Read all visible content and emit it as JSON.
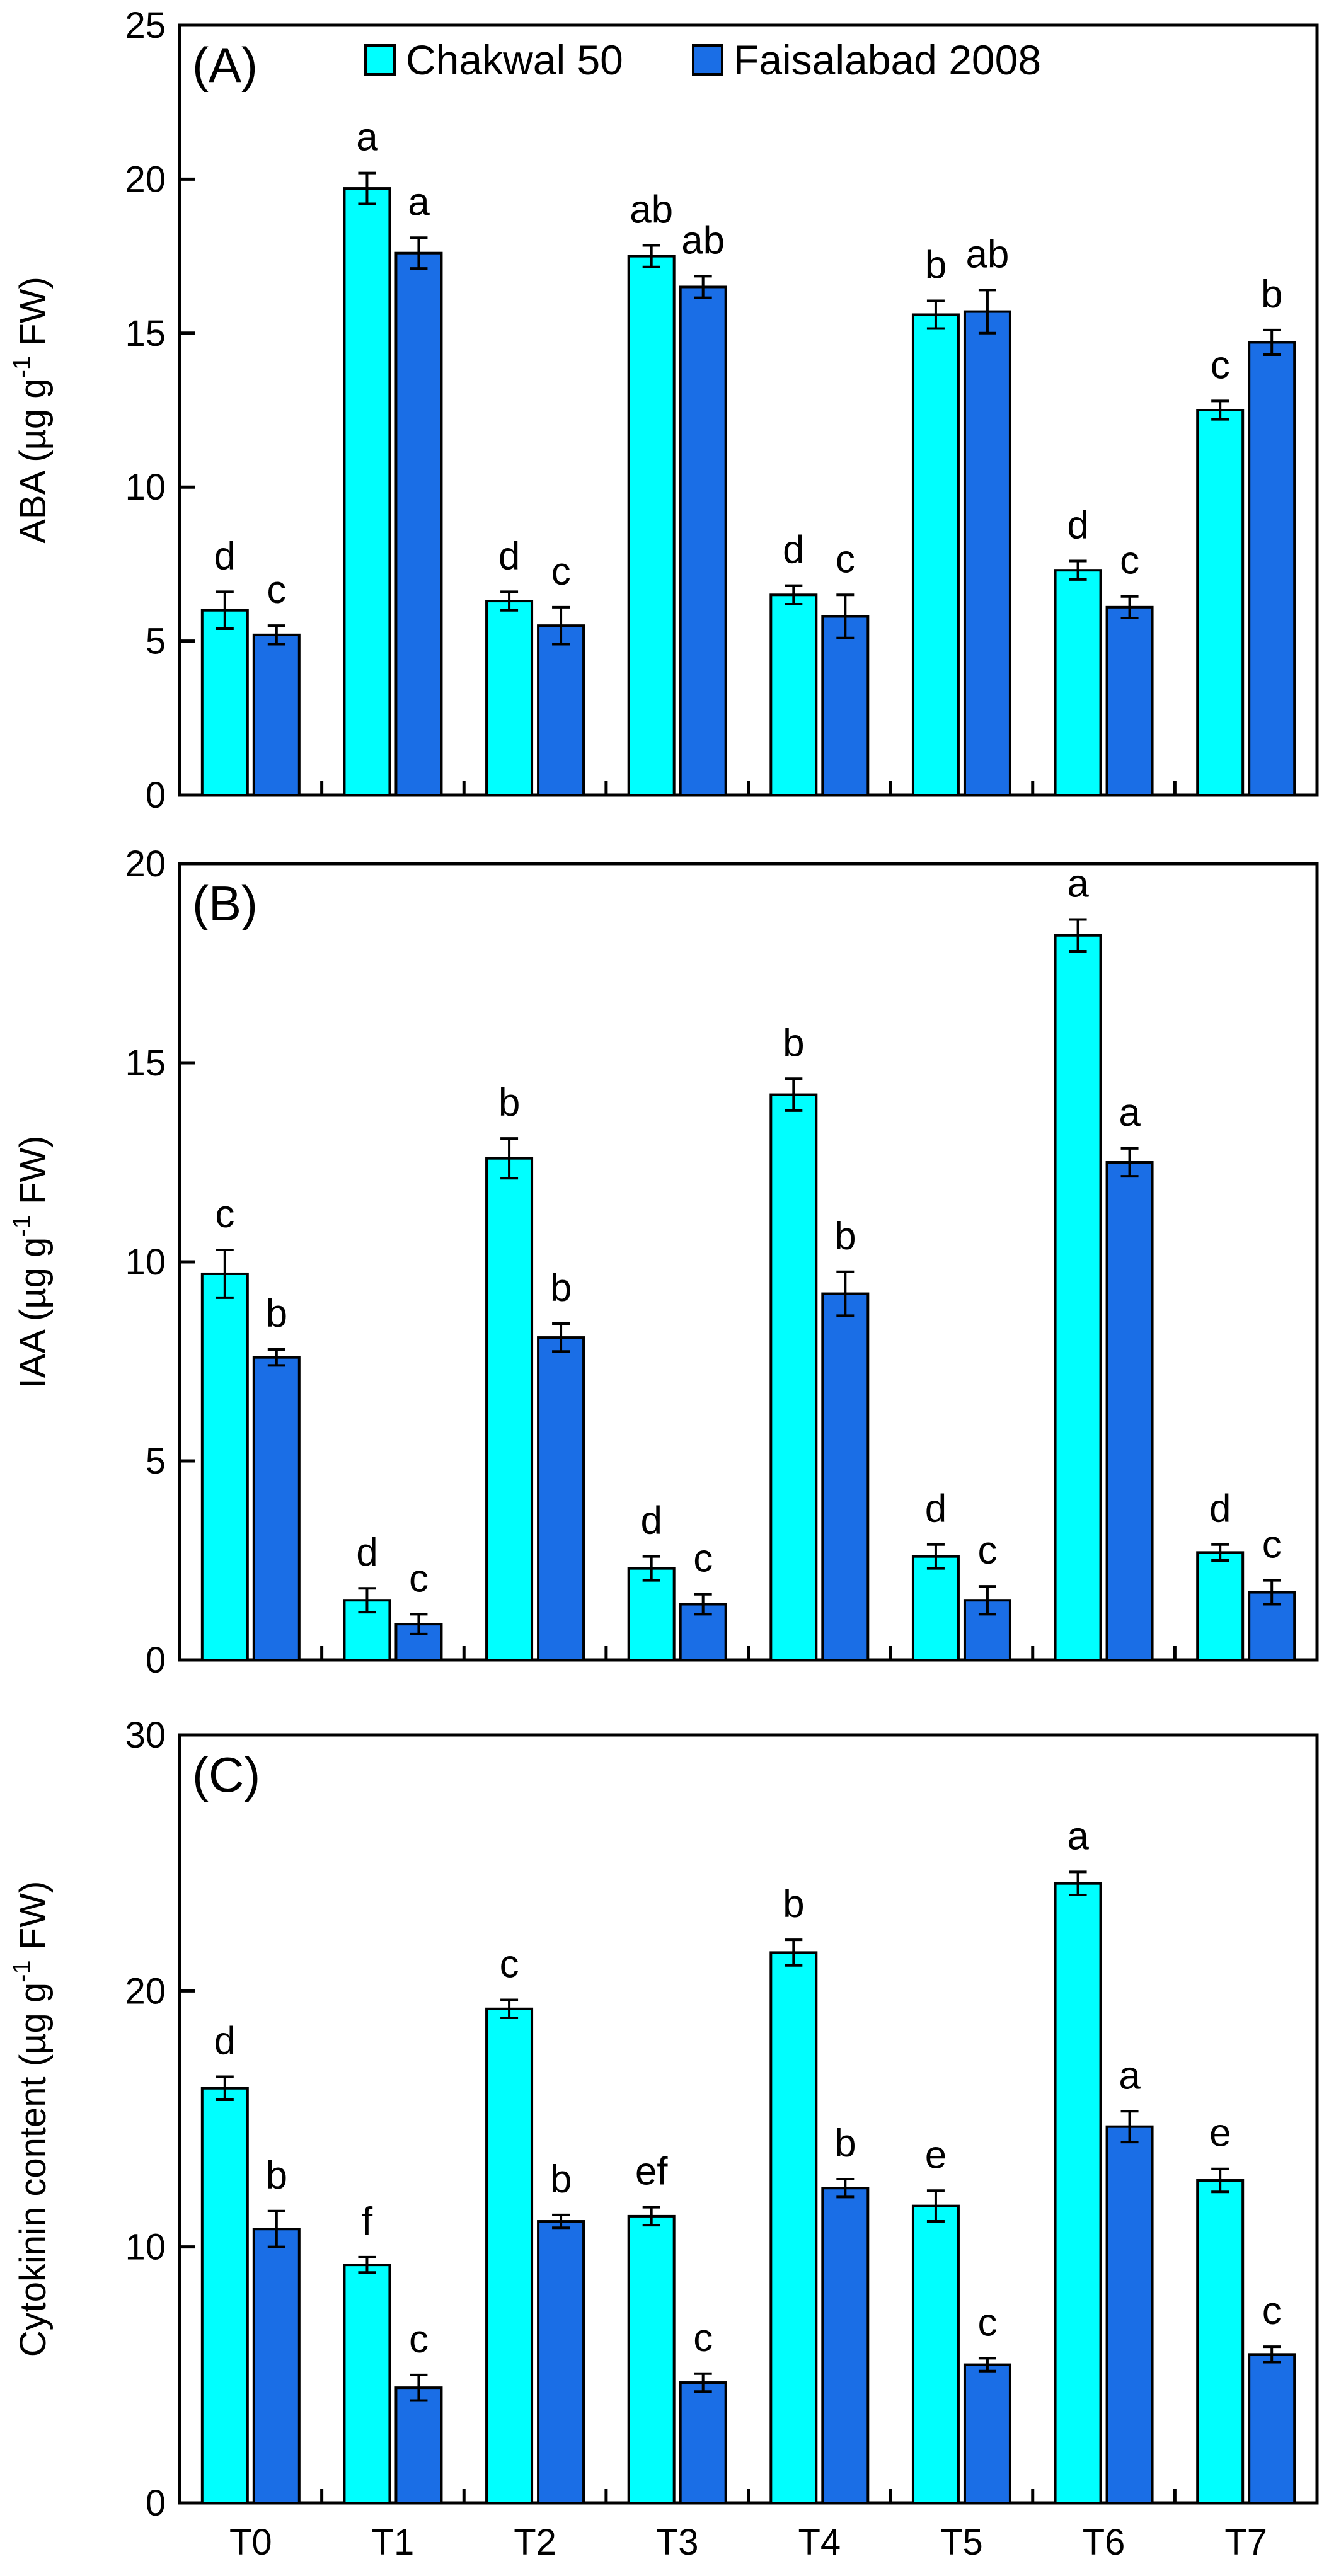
{
  "legend": {
    "series": [
      {
        "name": "Chakwal 50",
        "color": "#00FFFF"
      },
      {
        "name": "Faisalabad 2008",
        "color": "#1A6EE6"
      }
    ]
  },
  "chart_data": [
    {
      "type": "bar",
      "panel_label": "(A)",
      "ylabel": "ABA (µg g⁻¹ FW)",
      "ylim": [
        0,
        25
      ],
      "yticks": [
        0,
        5,
        10,
        15,
        20,
        25
      ],
      "categories": [
        "T0",
        "T1",
        "T2",
        "T3",
        "T4",
        "T5",
        "T6",
        "T7"
      ],
      "series": [
        {
          "name": "Chakwal 50",
          "values": [
            6.0,
            19.7,
            6.3,
            17.5,
            6.5,
            15.6,
            7.3,
            12.5
          ],
          "errors": [
            0.6,
            0.5,
            0.3,
            0.35,
            0.3,
            0.45,
            0.3,
            0.3
          ],
          "labels": [
            "d",
            "a",
            "d",
            "ab",
            "d",
            "b",
            "d",
            "c"
          ]
        },
        {
          "name": "Faisalabad 2008",
          "values": [
            5.2,
            17.6,
            5.5,
            16.5,
            5.8,
            15.7,
            6.1,
            14.7
          ],
          "errors": [
            0.3,
            0.5,
            0.6,
            0.35,
            0.7,
            0.7,
            0.35,
            0.4
          ],
          "labels": [
            "c",
            "a",
            "c",
            "ab",
            "c",
            "ab",
            "c",
            "b"
          ]
        }
      ]
    },
    {
      "type": "bar",
      "panel_label": "(B)",
      "ylabel": "IAA (µg g⁻¹ FW)",
      "ylim": [
        0,
        20
      ],
      "yticks": [
        0,
        5,
        10,
        15,
        20
      ],
      "categories": [
        "T0",
        "T1",
        "T2",
        "T3",
        "T4",
        "T5",
        "T6",
        "T7"
      ],
      "series": [
        {
          "name": "Chakwal 50",
          "values": [
            9.7,
            1.5,
            12.6,
            2.3,
            14.2,
            2.6,
            18.2,
            2.7
          ],
          "errors": [
            0.6,
            0.3,
            0.5,
            0.3,
            0.4,
            0.3,
            0.4,
            0.2
          ],
          "labels": [
            "c",
            "d",
            "b",
            "d",
            "b",
            "d",
            "a",
            "d"
          ]
        },
        {
          "name": "Faisalabad 2008",
          "values": [
            7.6,
            0.9,
            8.1,
            1.4,
            9.2,
            1.5,
            12.5,
            1.7
          ],
          "errors": [
            0.2,
            0.25,
            0.35,
            0.25,
            0.55,
            0.35,
            0.35,
            0.3
          ],
          "labels": [
            "b",
            "c",
            "b",
            "c",
            "b",
            "c",
            "a",
            "c"
          ]
        }
      ]
    },
    {
      "type": "bar",
      "panel_label": "(C)",
      "ylabel": "Cytokinin content (µg g⁻¹ FW)",
      "ylim": [
        0,
        30
      ],
      "yticks": [
        0,
        10,
        20,
        30
      ],
      "categories": [
        "T0",
        "T1",
        "T2",
        "T3",
        "T4",
        "T5",
        "T6",
        "T7"
      ],
      "series": [
        {
          "name": "Chakwal 50",
          "values": [
            16.2,
            9.3,
            19.3,
            11.2,
            21.5,
            11.6,
            24.2,
            12.6
          ],
          "errors": [
            0.45,
            0.3,
            0.35,
            0.35,
            0.5,
            0.6,
            0.45,
            0.45
          ],
          "labels": [
            "d",
            "f",
            "c",
            "ef",
            "b",
            "e",
            "a",
            "e"
          ]
        },
        {
          "name": "Faisalabad 2008",
          "values": [
            10.7,
            4.5,
            11.0,
            4.7,
            12.3,
            5.4,
            14.7,
            5.8
          ],
          "errors": [
            0.7,
            0.5,
            0.25,
            0.35,
            0.35,
            0.25,
            0.6,
            0.3
          ],
          "labels": [
            "b",
            "c",
            "b",
            "c",
            "b",
            "c",
            "a",
            "c"
          ]
        }
      ]
    }
  ]
}
